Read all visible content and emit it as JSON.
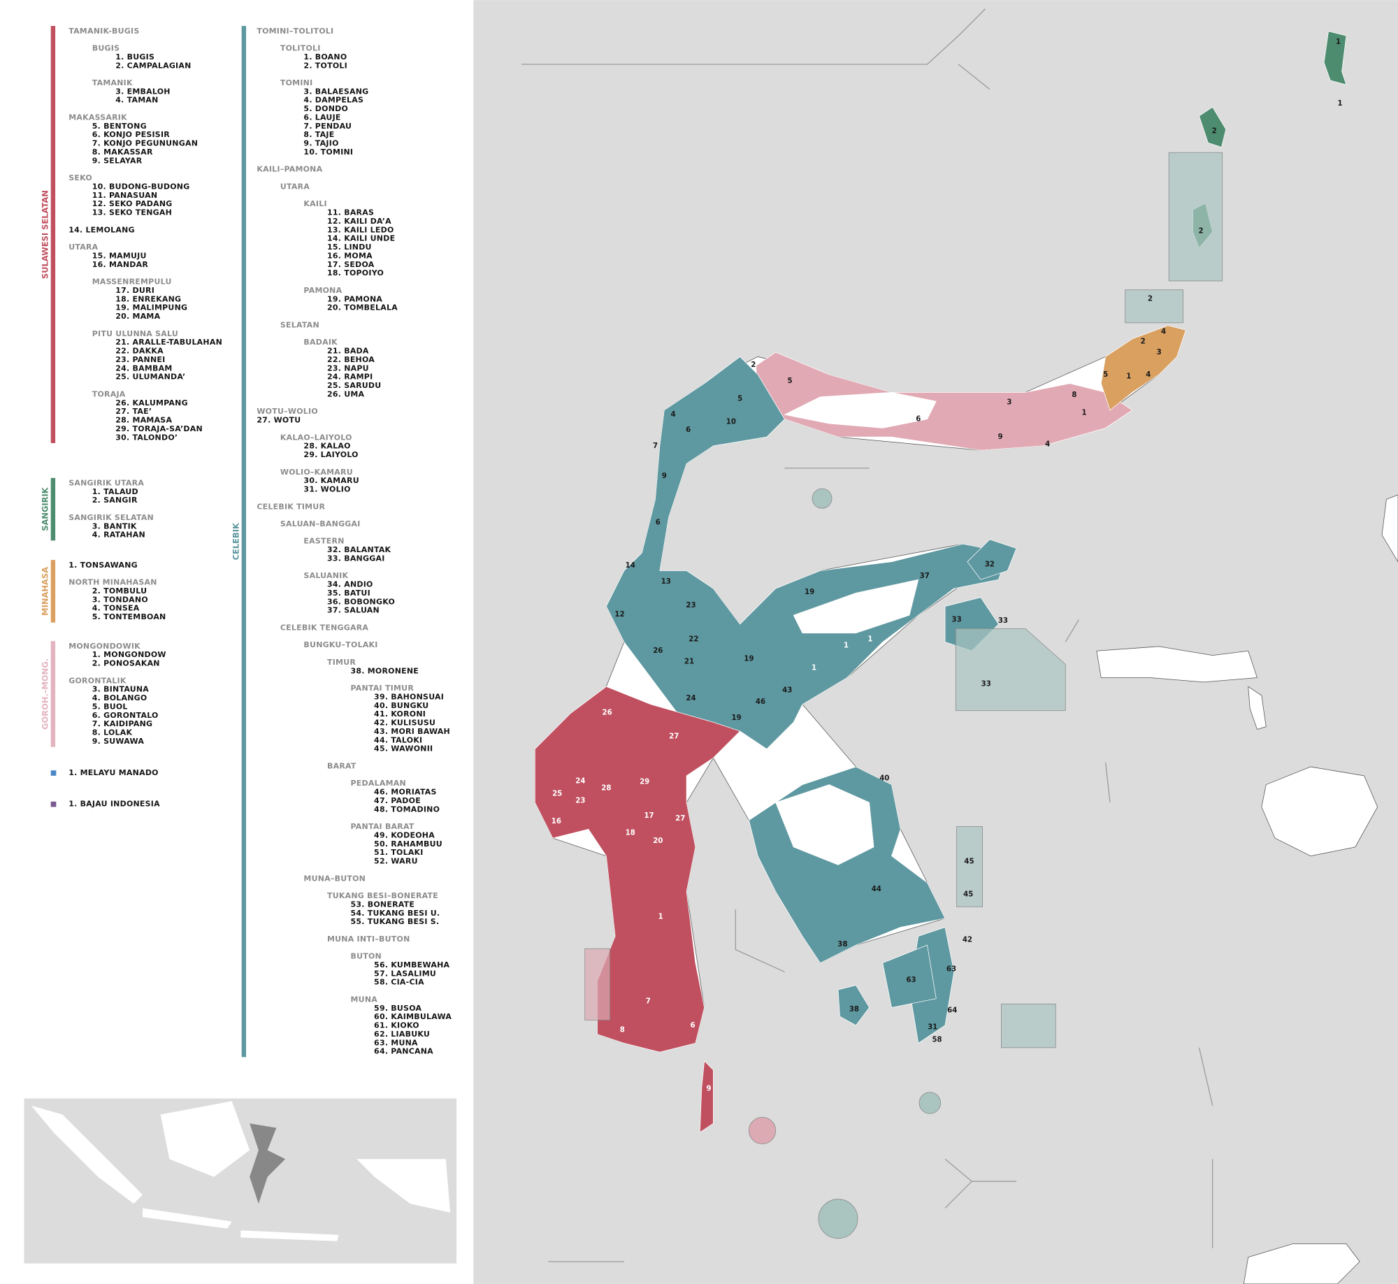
{
  "legend": {
    "columns": [
      {
        "groups": [
          {
            "name": "SULAWESI SELATAN",
            "color": "#c0505f",
            "entries": [
              {
                "t": "TAMANIK-BUGIS",
                "l": 0,
                "h": true
              },
              {
                "t": "BUGIS",
                "l": 1,
                "h": true
              },
              {
                "t": "1. BUGIS",
                "l": 2
              },
              {
                "t": "2. CAMPALAGIAN",
                "l": 2
              },
              {
                "t": "TAMANIK",
                "l": 1,
                "h": true
              },
              {
                "t": "3. EMBALOH",
                "l": 2
              },
              {
                "t": "4. TAMAN",
                "l": 2
              },
              {
                "t": "MAKASSARIK",
                "l": 0,
                "h": true
              },
              {
                "t": "5. BENTONG",
                "l": 1
              },
              {
                "t": "6. KONJO PESISIR",
                "l": 1
              },
              {
                "t": "7. KONJO PEGUNUNGAN",
                "l": 1
              },
              {
                "t": "8. MAKASSAR",
                "l": 1
              },
              {
                "t": "9. SELAYAR",
                "l": 1
              },
              {
                "t": "SEKO",
                "l": 0,
                "h": true
              },
              {
                "t": "10. BUDONG-BUDONG",
                "l": 1
              },
              {
                "t": "11. PANASUAN",
                "l": 1
              },
              {
                "t": "12. SEKO PADANG",
                "l": 1
              },
              {
                "t": "13. SEKO TENGAH",
                "l": 1
              },
              {
                "t": "14. LEMOLANG",
                "l": 0
              },
              {
                "t": "UTARA",
                "l": 0,
                "h": true
              },
              {
                "t": "15. MAMUJU",
                "l": 1
              },
              {
                "t": "16. MANDAR",
                "l": 1
              },
              {
                "t": "MASSENREMPULU",
                "l": 1,
                "h": true
              },
              {
                "t": "17. DURI",
                "l": 2
              },
              {
                "t": "18. ENREKANG",
                "l": 2
              },
              {
                "t": "19. MALIMPUNG",
                "l": 2
              },
              {
                "t": "20. MAMA",
                "l": 2
              },
              {
                "t": "PITU ULUNNA SALU",
                "l": 1,
                "h": true
              },
              {
                "t": "21. ARALLE-TABULAHAN",
                "l": 2
              },
              {
                "t": "22. DAKKA",
                "l": 2
              },
              {
                "t": "23. PANNEI",
                "l": 2
              },
              {
                "t": "24. BAMBAM",
                "l": 2
              },
              {
                "t": "25. ULUMANDA’",
                "l": 2
              },
              {
                "t": "TORAJA",
                "l": 1,
                "h": true
              },
              {
                "t": "26. KALUMPANG",
                "l": 2
              },
              {
                "t": "27. TAE’",
                "l": 2
              },
              {
                "t": "28. MAMASA",
                "l": 2
              },
              {
                "t": "29. TORAJA-SA’DAN",
                "l": 2
              },
              {
                "t": "30. TALONDO’",
                "l": 2
              }
            ]
          },
          {
            "name": "SANGIRIK",
            "color": "#4e8c6f",
            "entries": [
              {
                "t": "SANGIRIK UTARA",
                "l": 0,
                "h": true
              },
              {
                "t": "1. TALAUD",
                "l": 1
              },
              {
                "t": "2. SANGIR",
                "l": 1
              },
              {
                "t": "SANGIRIK SELATAN",
                "l": 0,
                "h": true
              },
              {
                "t": "3. BANTIK",
                "l": 1
              },
              {
                "t": "4. RATAHAN",
                "l": 1
              }
            ]
          },
          {
            "name": "MINAHASA",
            "color": "#d9a060",
            "entries": [
              {
                "t": "1. TONSAWANG",
                "l": 0
              },
              {
                "t": "NORTH MINAHASAN",
                "l": 0,
                "h": true
              },
              {
                "t": "2. TOMBULU",
                "l": 1
              },
              {
                "t": "3. TONDANO",
                "l": 1
              },
              {
                "t": "4. TONSEA",
                "l": 1
              },
              {
                "t": "5. TONTEMBOAN",
                "l": 1
              }
            ]
          },
          {
            "name": "GOROH.–MONG.",
            "color": "#e3b3bf",
            "entries": [
              {
                "t": "MONGONDOWIK",
                "l": 0,
                "h": true
              },
              {
                "t": "1. MONGONDOW",
                "l": 1
              },
              {
                "t": "2. PONOSAKAN",
                "l": 1
              },
              {
                "t": "GORONTALIK",
                "l": 0,
                "h": true
              },
              {
                "t": "3. BINTAUNA",
                "l": 1
              },
              {
                "t": "4. BOLANGO",
                "l": 1
              },
              {
                "t": "5. BUOL",
                "l": 1
              },
              {
                "t": "6. GORONTALO",
                "l": 1
              },
              {
                "t": "7. KAIDIPANG",
                "l": 1
              },
              {
                "t": "8. LOLAK",
                "l": 1
              },
              {
                "t": "9. SUWAWA",
                "l": 1
              }
            ]
          },
          {
            "color": "#4a88c8",
            "entries": [
              {
                "t": "1. MELAYU MANADO",
                "l": 0
              }
            ]
          },
          {
            "color": "#7a5a90",
            "entries": [
              {
                "t": "1. BAJAU INDONESIA",
                "l": 0
              }
            ]
          }
        ]
      },
      {
        "groups": [
          {
            "name": "CELEBIK",
            "color": "#5e98a0",
            "entries": [
              {
                "t": "TOMINI–TOLITOLI",
                "l": 0,
                "h": true
              },
              {
                "t": "TOLITOLI",
                "l": 1,
                "h": true
              },
              {
                "t": "1. BOANO",
                "l": 2
              },
              {
                "t": "2. TOTOLI",
                "l": 2
              },
              {
                "t": "TOMINI",
                "l": 1,
                "h": true
              },
              {
                "t": "3. BALAESANG",
                "l": 2
              },
              {
                "t": "4. DAMPELAS",
                "l": 2
              },
              {
                "t": "5. DONDO",
                "l": 2
              },
              {
                "t": "6. LAUJE",
                "l": 2
              },
              {
                "t": "7. PENDAU",
                "l": 2
              },
              {
                "t": "8. TAJE",
                "l": 2
              },
              {
                "t": "9. TAJIO",
                "l": 2
              },
              {
                "t": "10. TOMINI",
                "l": 2
              },
              {
                "t": "KAILI–PAMONA",
                "l": 0,
                "h": true
              },
              {
                "t": "UTARA",
                "l": 1,
                "h": true
              },
              {
                "t": "KAILI",
                "l": 2,
                "h": true
              },
              {
                "t": "11. BARAS",
                "l": 3
              },
              {
                "t": "12. KAILI DA’A",
                "l": 3
              },
              {
                "t": "13. KAILI LEDO",
                "l": 3
              },
              {
                "t": "14. KAILI UNDE",
                "l": 3
              },
              {
                "t": "15. LINDU",
                "l": 3
              },
              {
                "t": "16. MOMA",
                "l": 3
              },
              {
                "t": "17. SEDOA",
                "l": 3
              },
              {
                "t": "18. TOPOIYO",
                "l": 3
              },
              {
                "t": "PAMONA",
                "l": 2,
                "h": true
              },
              {
                "t": "19. PAMONA",
                "l": 3
              },
              {
                "t": "20. TOMBELALA",
                "l": 3
              },
              {
                "t": "SELATAN",
                "l": 1,
                "h": true
              },
              {
                "t": "BADAIK",
                "l": 2,
                "h": true
              },
              {
                "t": "21. BADA",
                "l": 3
              },
              {
                "t": "22. BEHOA",
                "l": 3
              },
              {
                "t": "23. NAPU",
                "l": 3
              },
              {
                "t": "24. RAMPI",
                "l": 3
              },
              {
                "t": "25. SARUDU",
                "l": 3
              },
              {
                "t": "26. UMA",
                "l": 3
              },
              {
                "t": "WOTU–WOLIO",
                "l": 0,
                "h": true
              },
              {
                "t": "27. WOTU",
                "l": 0
              },
              {
                "t": "KALAO–LAIYOLO",
                "l": 1,
                "h": true
              },
              {
                "t": "28. KALAO",
                "l": 2
              },
              {
                "t": "29. LAIYOLO",
                "l": 2
              },
              {
                "t": "WOLIO–KAMARU",
                "l": 1,
                "h": true
              },
              {
                "t": "30. KAMARU",
                "l": 2
              },
              {
                "t": "31. WOLIO",
                "l": 2
              },
              {
                "t": "CELEBIK TIMUR",
                "l": 0,
                "h": true
              },
              {
                "t": "SALUAN–BANGGAI",
                "l": 1,
                "h": true
              },
              {
                "t": "EASTERN",
                "l": 2,
                "h": true
              },
              {
                "t": "32. BALANTAK",
                "l": 3
              },
              {
                "t": "33. BANGGAI",
                "l": 3
              },
              {
                "t": "SALUANIK",
                "l": 2,
                "h": true
              },
              {
                "t": "34. ANDIO",
                "l": 3
              },
              {
                "t": "35. BATUI",
                "l": 3
              },
              {
                "t": "36. BOBONGKO",
                "l": 3
              },
              {
                "t": "37. SALUAN",
                "l": 3
              },
              {
                "t": "CELEBIK TENGGARA",
                "l": 1,
                "h": true
              },
              {
                "t": "BUNGKU–TOLAKI",
                "l": 2,
                "h": true
              },
              {
                "t": "TIMUR",
                "l": 3,
                "h": true
              },
              {
                "t": "38. MORONENE",
                "l": 4
              },
              {
                "t": "PANTAI TIMUR",
                "l": 4,
                "h": true
              },
              {
                "t": "39. BAHONSUAI",
                "l": 5
              },
              {
                "t": "40. BUNGKU",
                "l": 5
              },
              {
                "t": "41. KORONI",
                "l": 5
              },
              {
                "t": "42. KULISUSU",
                "l": 5
              },
              {
                "t": "43. MORI BAWAH",
                "l": 5
              },
              {
                "t": "44. TALOKI",
                "l": 5
              },
              {
                "t": "45. WAWONII",
                "l": 5
              },
              {
                "t": "BARAT",
                "l": 3,
                "h": true
              },
              {
                "t": "PEDALAMAN",
                "l": 4,
                "h": true
              },
              {
                "t": "46. MORIATAS",
                "l": 5
              },
              {
                "t": "47. PADOE",
                "l": 5
              },
              {
                "t": "48. TOMADINO",
                "l": 5
              },
              {
                "t": "PANTAI BARAT",
                "l": 4,
                "h": true
              },
              {
                "t": "49. KODEOHA",
                "l": 5
              },
              {
                "t": "50. RAHAMBUU",
                "l": 5
              },
              {
                "t": "51. TOLAKI",
                "l": 5
              },
              {
                "t": "52. WARU",
                "l": 5
              },
              {
                "t": "MUNA–BUTON",
                "l": 2,
                "h": true
              },
              {
                "t": "TUKANG BESI–BONERATE",
                "l": 3,
                "h": true
              },
              {
                "t": "53. BONERATE",
                "l": 4
              },
              {
                "t": "54. TUKANG BESI U.",
                "l": 4
              },
              {
                "t": "55. TUKANG BESI S.",
                "l": 4
              },
              {
                "t": "MUNA INTI–BUTON",
                "l": 3,
                "h": true
              },
              {
                "t": "BUTON",
                "l": 4,
                "h": true
              },
              {
                "t": "56. KUMBEWAHA",
                "l": 5
              },
              {
                "t": "57. LASALIMU",
                "l": 5
              },
              {
                "t": "58. CIA-CIA",
                "l": 5
              },
              {
                "t": "MUNA",
                "l": 4,
                "h": true
              },
              {
                "t": "59. BUSOA",
                "l": 5
              },
              {
                "t": "60. KAIMBULAWA",
                "l": 5
              },
              {
                "t": "61. KIOKO",
                "l": 5
              },
              {
                "t": "62. LIABUKU",
                "l": 5
              },
              {
                "t": "63. MUNA",
                "l": 5
              },
              {
                "t": "64. PANCANA",
                "l": 5
              }
            ]
          }
        ]
      }
    ]
  },
  "map": {
    "labels": [
      "1",
      "1",
      "2",
      "2",
      "2",
      "4",
      "2",
      "3",
      "5",
      "1",
      "4",
      "1",
      "8",
      "3",
      "9",
      "6",
      "4",
      "5",
      "2",
      "5",
      "10",
      "6",
      "4",
      "7",
      "9",
      "6",
      "14",
      "13",
      "12",
      "26",
      "21",
      "22",
      "23",
      "19",
      "24",
      "19",
      "37",
      "32",
      "33",
      "33",
      "33",
      "43",
      "46",
      "19",
      "27",
      "26",
      "28",
      "29",
      "25",
      "24",
      "16",
      "23",
      "17",
      "27",
      "18",
      "20",
      "1",
      "7",
      "8",
      "6",
      "44",
      "38",
      "45",
      "45",
      "42",
      "63",
      "63",
      "64",
      "31",
      "58",
      "38",
      "40",
      "1",
      "1",
      "1",
      "1",
      "9"
    ]
  }
}
